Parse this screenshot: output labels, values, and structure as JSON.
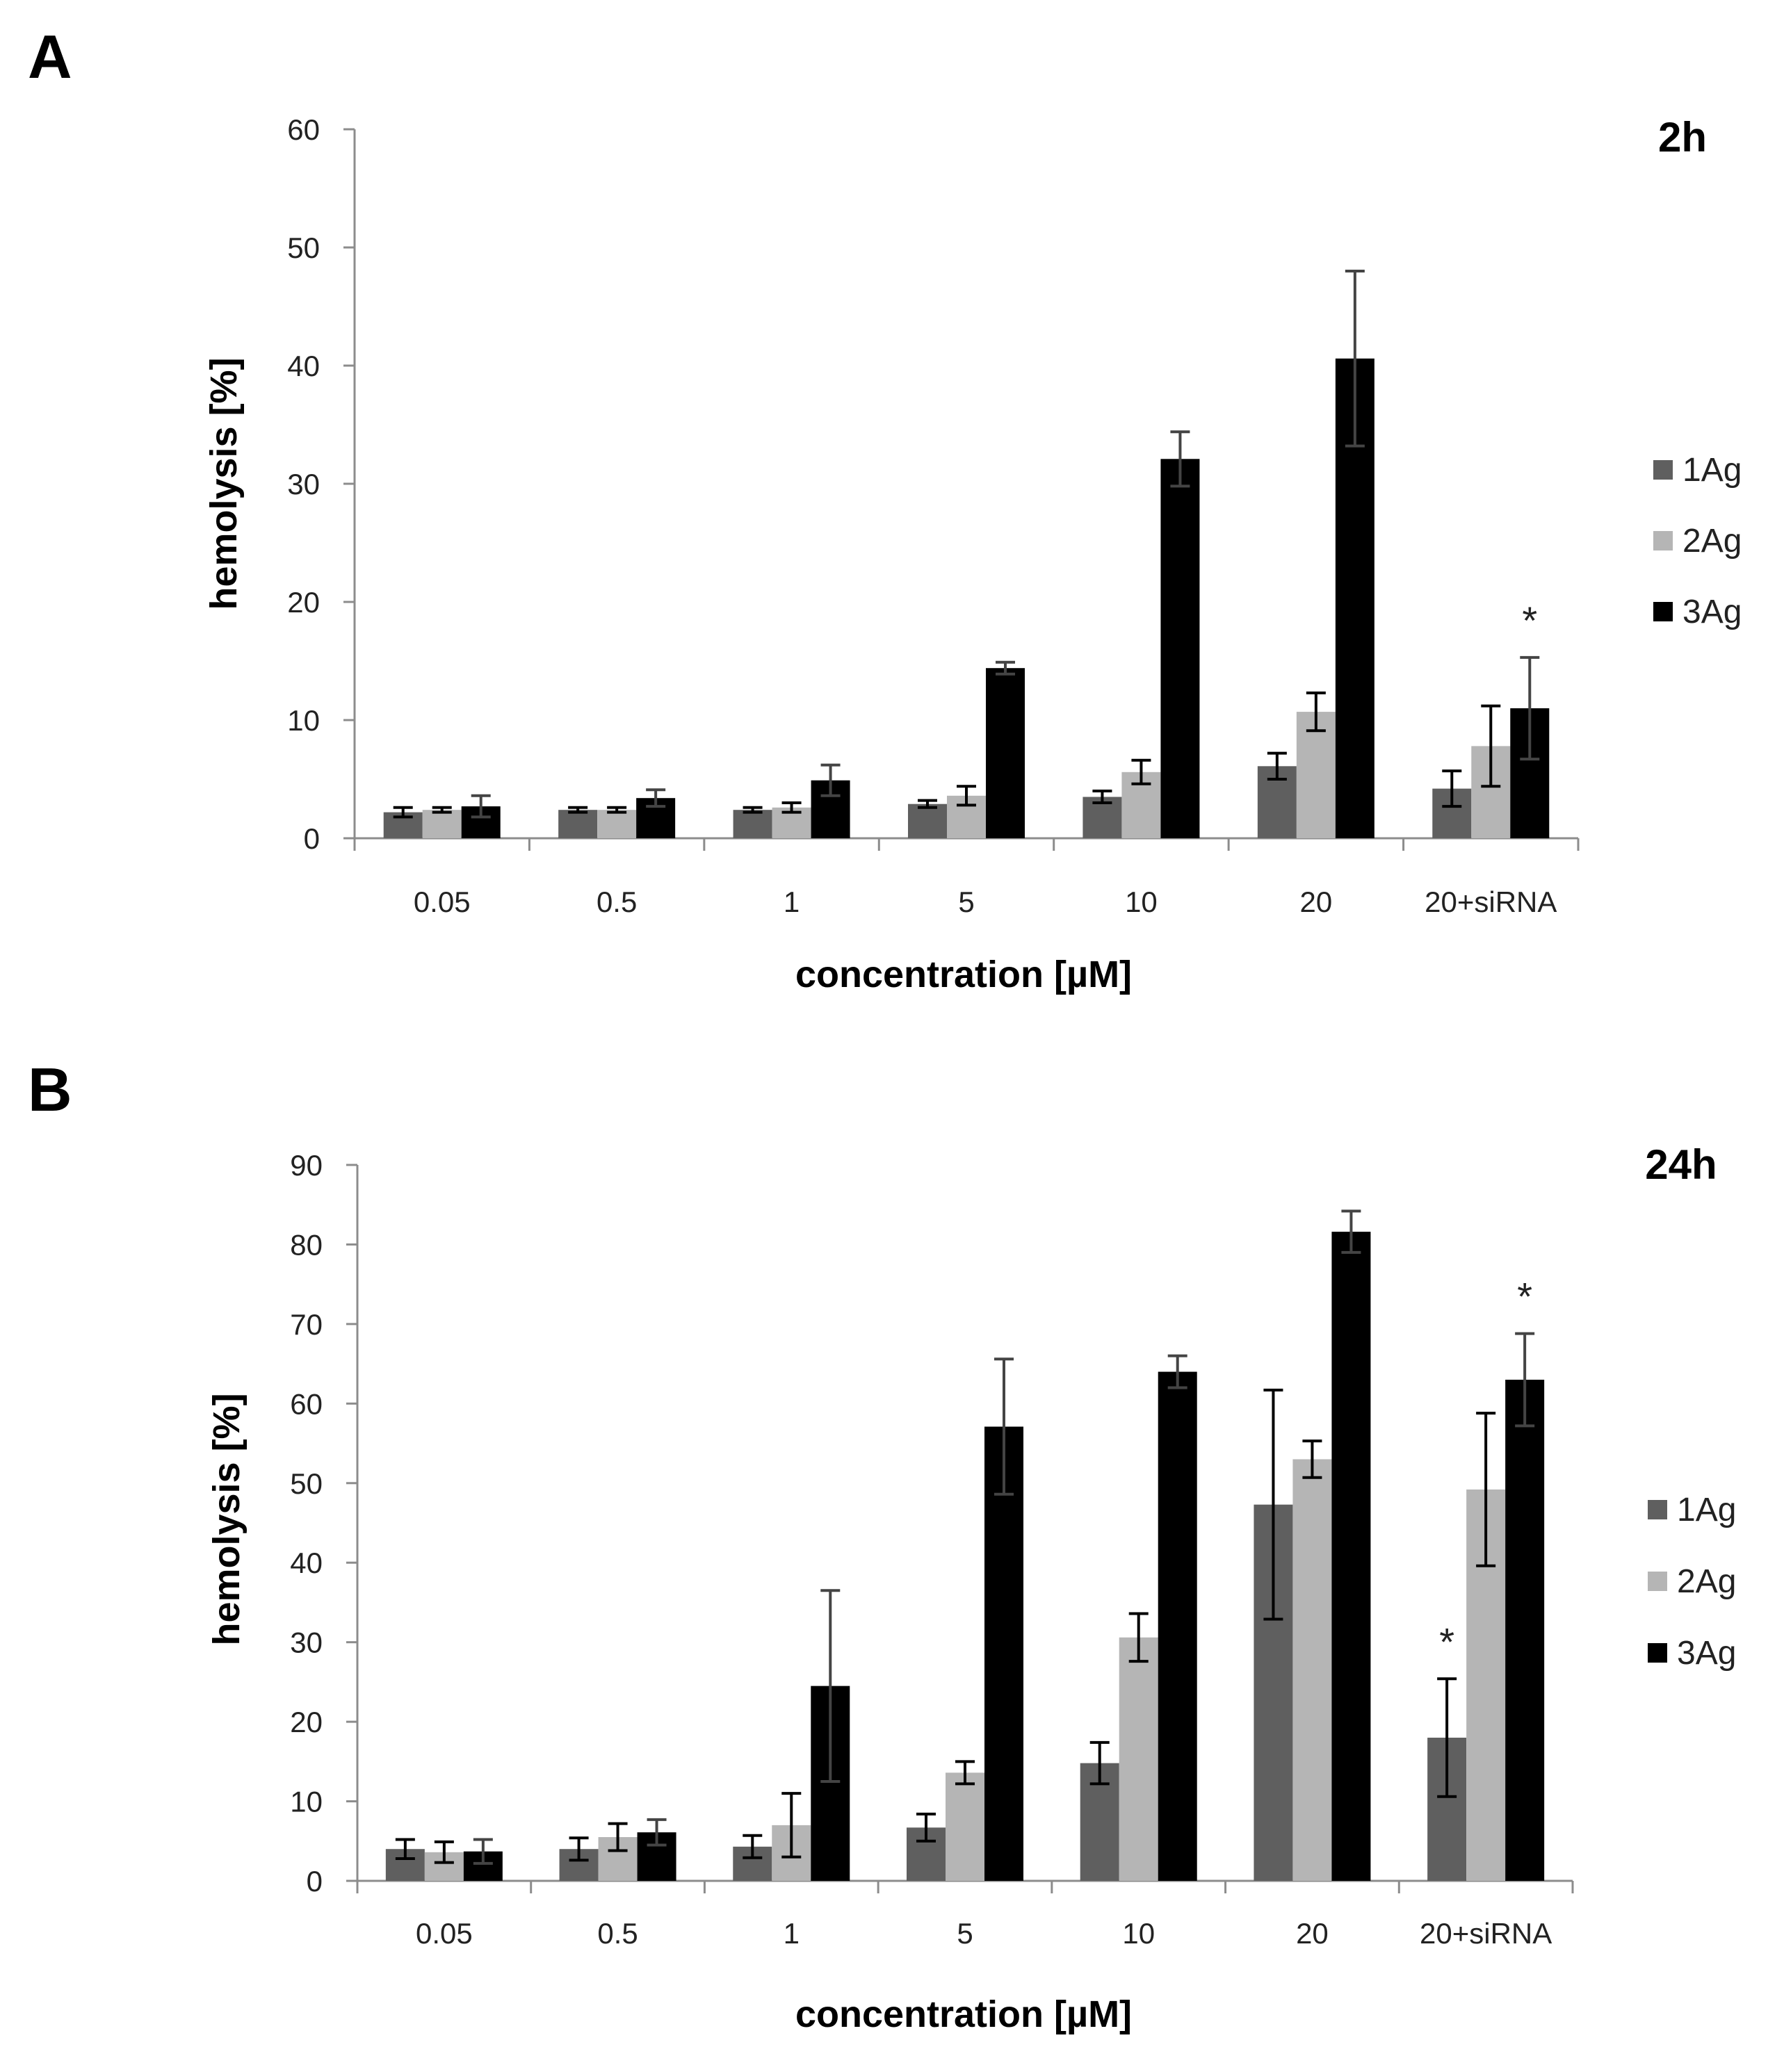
{
  "chart_data": [
    {
      "type": "bar",
      "panel_label": "A",
      "title": "2h",
      "xlabel": "concentration [µM]",
      "ylabel": "hemolysis [%]",
      "ylim": [
        0,
        60
      ],
      "yticks": [
        0,
        10,
        20,
        30,
        40,
        50,
        60
      ],
      "categories": [
        "0.05",
        "0.5",
        "1",
        "5",
        "10",
        "20",
        "20+siRNA"
      ],
      "legend_position": "right",
      "series": [
        {
          "name": "1Ag",
          "color": "#5f5f5f",
          "values": [
            2.2,
            2.4,
            2.4,
            2.9,
            3.5,
            6.1,
            4.2
          ],
          "errors": [
            0.4,
            0.2,
            0.2,
            0.3,
            0.5,
            1.1,
            1.5
          ]
        },
        {
          "name": "2Ag",
          "color": "#b5b5b5",
          "values": [
            2.4,
            2.4,
            2.6,
            3.6,
            5.6,
            10.7,
            7.8
          ],
          "errors": [
            0.2,
            0.2,
            0.4,
            0.8,
            1.0,
            1.6,
            3.4
          ]
        },
        {
          "name": "3Ag",
          "color": "#000000",
          "values": [
            2.7,
            3.4,
            4.9,
            14.4,
            32.1,
            40.6,
            11.0
          ],
          "errors": [
            0.9,
            0.7,
            1.3,
            0.5,
            2.3,
            7.4,
            4.3
          ]
        }
      ],
      "annotations": [
        {
          "category": "20+siRNA",
          "series": "3Ag",
          "text": "*"
        }
      ]
    },
    {
      "type": "bar",
      "panel_label": "B",
      "title": "24h",
      "xlabel": "concentration [µM]",
      "ylabel": "hemolysis [%]",
      "ylim": [
        0,
        90
      ],
      "yticks": [
        0,
        10,
        20,
        30,
        40,
        50,
        60,
        70,
        80,
        90
      ],
      "categories": [
        "0.05",
        "0.5",
        "1",
        "5",
        "10",
        "20",
        "20+siRNA"
      ],
      "legend_position": "right",
      "series": [
        {
          "name": "1Ag",
          "color": "#5f5f5f",
          "values": [
            4.0,
            4.0,
            4.3,
            6.7,
            14.8,
            47.3,
            18.0
          ],
          "errors": [
            1.2,
            1.4,
            1.4,
            1.7,
            2.6,
            14.4,
            7.4
          ]
        },
        {
          "name": "2Ag",
          "color": "#b5b5b5",
          "values": [
            3.6,
            5.5,
            7.0,
            13.6,
            30.6,
            53.0,
            49.2
          ],
          "errors": [
            1.3,
            1.7,
            4.0,
            1.4,
            3.0,
            2.3,
            9.6
          ]
        },
        {
          "name": "3Ag",
          "color": "#000000",
          "values": [
            3.7,
            6.1,
            24.5,
            57.1,
            64.0,
            81.6,
            63.0
          ],
          "errors": [
            1.5,
            1.6,
            12.0,
            8.5,
            2.0,
            2.6,
            5.8
          ]
        }
      ],
      "annotations": [
        {
          "category": "20+siRNA",
          "series": "1Ag",
          "text": "*"
        },
        {
          "category": "20+siRNA",
          "series": "3Ag",
          "text": "*"
        }
      ]
    }
  ]
}
